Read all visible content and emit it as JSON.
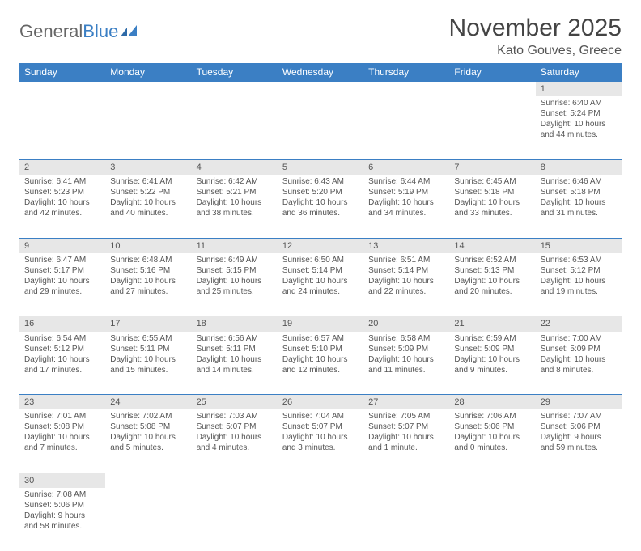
{
  "brand": {
    "general": "General",
    "blue": "Blue"
  },
  "title": "November 2025",
  "location": "Kato Gouves, Greece",
  "colors": {
    "header_bg": "#3b7fc4",
    "header_text": "#ffffff",
    "daynum_bg": "#e7e7e7",
    "border": "#3b7fc4",
    "text": "#555555",
    "background": "#ffffff"
  },
  "weekdays": [
    "Sunday",
    "Monday",
    "Tuesday",
    "Wednesday",
    "Thursday",
    "Friday",
    "Saturday"
  ],
  "weeks": [
    [
      null,
      null,
      null,
      null,
      null,
      null,
      {
        "n": "1",
        "sr": "6:40 AM",
        "ss": "5:24 PM",
        "dl": "10 hours and 44 minutes."
      }
    ],
    [
      {
        "n": "2",
        "sr": "6:41 AM",
        "ss": "5:23 PM",
        "dl": "10 hours and 42 minutes."
      },
      {
        "n": "3",
        "sr": "6:41 AM",
        "ss": "5:22 PM",
        "dl": "10 hours and 40 minutes."
      },
      {
        "n": "4",
        "sr": "6:42 AM",
        "ss": "5:21 PM",
        "dl": "10 hours and 38 minutes."
      },
      {
        "n": "5",
        "sr": "6:43 AM",
        "ss": "5:20 PM",
        "dl": "10 hours and 36 minutes."
      },
      {
        "n": "6",
        "sr": "6:44 AM",
        "ss": "5:19 PM",
        "dl": "10 hours and 34 minutes."
      },
      {
        "n": "7",
        "sr": "6:45 AM",
        "ss": "5:18 PM",
        "dl": "10 hours and 33 minutes."
      },
      {
        "n": "8",
        "sr": "6:46 AM",
        "ss": "5:18 PM",
        "dl": "10 hours and 31 minutes."
      }
    ],
    [
      {
        "n": "9",
        "sr": "6:47 AM",
        "ss": "5:17 PM",
        "dl": "10 hours and 29 minutes."
      },
      {
        "n": "10",
        "sr": "6:48 AM",
        "ss": "5:16 PM",
        "dl": "10 hours and 27 minutes."
      },
      {
        "n": "11",
        "sr": "6:49 AM",
        "ss": "5:15 PM",
        "dl": "10 hours and 25 minutes."
      },
      {
        "n": "12",
        "sr": "6:50 AM",
        "ss": "5:14 PM",
        "dl": "10 hours and 24 minutes."
      },
      {
        "n": "13",
        "sr": "6:51 AM",
        "ss": "5:14 PM",
        "dl": "10 hours and 22 minutes."
      },
      {
        "n": "14",
        "sr": "6:52 AM",
        "ss": "5:13 PM",
        "dl": "10 hours and 20 minutes."
      },
      {
        "n": "15",
        "sr": "6:53 AM",
        "ss": "5:12 PM",
        "dl": "10 hours and 19 minutes."
      }
    ],
    [
      {
        "n": "16",
        "sr": "6:54 AM",
        "ss": "5:12 PM",
        "dl": "10 hours and 17 minutes."
      },
      {
        "n": "17",
        "sr": "6:55 AM",
        "ss": "5:11 PM",
        "dl": "10 hours and 15 minutes."
      },
      {
        "n": "18",
        "sr": "6:56 AM",
        "ss": "5:11 PM",
        "dl": "10 hours and 14 minutes."
      },
      {
        "n": "19",
        "sr": "6:57 AM",
        "ss": "5:10 PM",
        "dl": "10 hours and 12 minutes."
      },
      {
        "n": "20",
        "sr": "6:58 AM",
        "ss": "5:09 PM",
        "dl": "10 hours and 11 minutes."
      },
      {
        "n": "21",
        "sr": "6:59 AM",
        "ss": "5:09 PM",
        "dl": "10 hours and 9 minutes."
      },
      {
        "n": "22",
        "sr": "7:00 AM",
        "ss": "5:09 PM",
        "dl": "10 hours and 8 minutes."
      }
    ],
    [
      {
        "n": "23",
        "sr": "7:01 AM",
        "ss": "5:08 PM",
        "dl": "10 hours and 7 minutes."
      },
      {
        "n": "24",
        "sr": "7:02 AM",
        "ss": "5:08 PM",
        "dl": "10 hours and 5 minutes."
      },
      {
        "n": "25",
        "sr": "7:03 AM",
        "ss": "5:07 PM",
        "dl": "10 hours and 4 minutes."
      },
      {
        "n": "26",
        "sr": "7:04 AM",
        "ss": "5:07 PM",
        "dl": "10 hours and 3 minutes."
      },
      {
        "n": "27",
        "sr": "7:05 AM",
        "ss": "5:07 PM",
        "dl": "10 hours and 1 minute."
      },
      {
        "n": "28",
        "sr": "7:06 AM",
        "ss": "5:06 PM",
        "dl": "10 hours and 0 minutes."
      },
      {
        "n": "29",
        "sr": "7:07 AM",
        "ss": "5:06 PM",
        "dl": "9 hours and 59 minutes."
      }
    ],
    [
      {
        "n": "30",
        "sr": "7:08 AM",
        "ss": "5:06 PM",
        "dl": "9 hours and 58 minutes."
      },
      null,
      null,
      null,
      null,
      null,
      null
    ]
  ],
  "labels": {
    "sunrise": "Sunrise:",
    "sunset": "Sunset:",
    "daylight": "Daylight:"
  }
}
